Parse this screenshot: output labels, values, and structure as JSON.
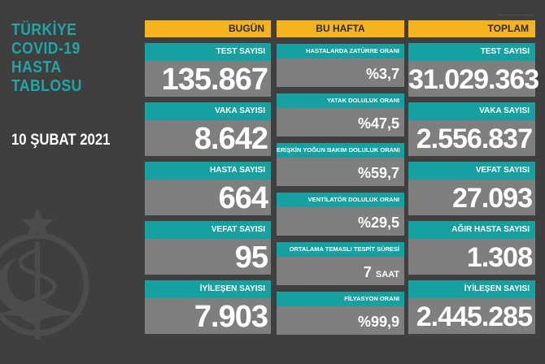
{
  "title": "TÜRKİYE\nCOVID-19\nHASTA\nTABLOSU",
  "date": "10 ŞUBAT 2021",
  "colors": {
    "background": "#3f3f3f",
    "header": "#f5b31e",
    "label": "#17a0a0",
    "value_box": "#7f7f7f",
    "title": "#1fa6a6"
  },
  "headers": {
    "today": "BUGÜN",
    "week": "BU HAFTA",
    "total": "TOPLAM"
  },
  "today": [
    {
      "label": "TEST SAYISI",
      "value": "135.867"
    },
    {
      "label": "VAKA SAYISI",
      "value": "8.642"
    },
    {
      "label": "HASTA SAYISI",
      "value": "664"
    },
    {
      "label": "VEFAT SAYISI",
      "value": "95"
    },
    {
      "label": "İYİLEŞEN SAYISI",
      "value": "7.903"
    }
  ],
  "week": [
    {
      "label": "HASTALARDA ZATÜRRE ORANI",
      "value": "%3,7"
    },
    {
      "label": "YATAK DOLULUK ORANI",
      "value": "%47,5"
    },
    {
      "label": "ERİŞKİN YOĞUN BAKIM DOLULUK ORANI",
      "value": "%59,7"
    },
    {
      "label": "VENTİLATÖR DOLULUK ORANI",
      "value": "%29,5"
    },
    {
      "label": "ORTALAMA TEMASLI TESPİT SÜRESİ",
      "value": "7",
      "unit": "SAAT"
    },
    {
      "label": "FİLYASYON ORANI",
      "value": "%99,9"
    }
  ],
  "total": [
    {
      "label": "TEST SAYISI",
      "value": "31.029.363"
    },
    {
      "label": "VAKA SAYISI",
      "value": "2.556.837"
    },
    {
      "label": "VEFAT SAYISI",
      "value": "27.093"
    },
    {
      "label": "AĞIR HASTA SAYISI",
      "value": "1.308"
    },
    {
      "label": "İYİLEŞEN SAYISI",
      "value": "2.445.285"
    }
  ],
  "emblem_icon": "ministry-of-health-emblem-icon"
}
